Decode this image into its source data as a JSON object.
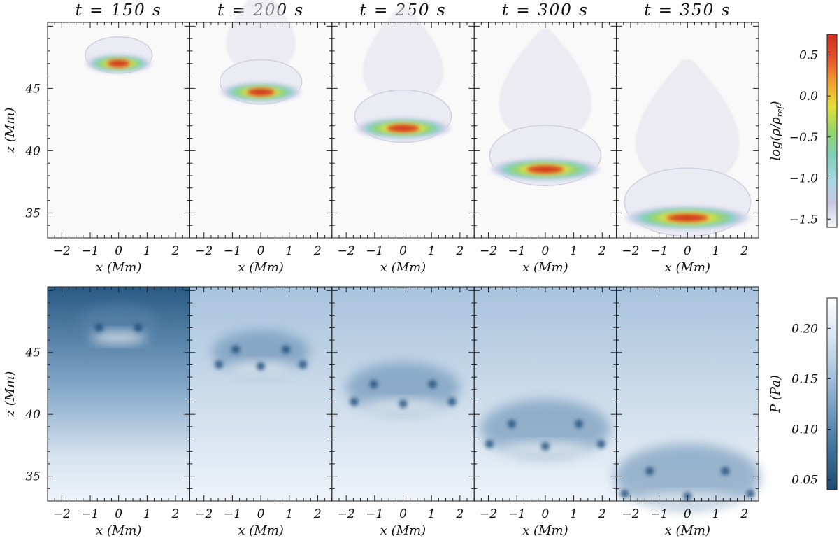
{
  "chart_data": [
    {
      "type": "heatmap",
      "variable": "density",
      "titles": [
        "t = 150 s",
        "t = 200 s",
        "t = 250 s",
        "t = 300 s",
        "t = 350 s"
      ],
      "times_s": [
        150,
        200,
        250,
        300,
        350
      ],
      "xlabel": "x (Mm)",
      "ylabel": "z (Mm)",
      "xlim": [
        -2.5,
        2.5
      ],
      "ylim": [
        33,
        50.3
      ],
      "x_ticks": [
        -2,
        -1,
        0,
        1,
        2
      ],
      "y_ticks": [
        35,
        40,
        45
      ],
      "colorbar": {
        "label": "log(ρ/ρ",
        "label_sub": "ref",
        "label_end": ")",
        "range": [
          -1.6,
          0.75
        ],
        "ticks": [
          0.5,
          0.0,
          -0.5,
          -1.0,
          -1.5
        ],
        "tick_labels": [
          "0.5",
          "0.0",
          "−0.5",
          "−1.0",
          "−1.5"
        ],
        "colors": [
          "#f6f6f8",
          "#c8c8e4",
          "#a8d8e2",
          "#7fcfb8",
          "#95d46a",
          "#e4e03c",
          "#f2a030",
          "#e4512a",
          "#cf3020"
        ]
      },
      "blob_center_z": [
        47.0,
        44.7,
        41.8,
        38.5,
        34.6
      ]
    },
    {
      "type": "heatmap",
      "variable": "pressure",
      "xlabel": "x (Mm)",
      "ylabel": "z (Mm)",
      "xlim": [
        -2.5,
        2.5
      ],
      "ylim": [
        33,
        50.3
      ],
      "x_ticks": [
        -2,
        -1,
        0,
        1,
        2
      ],
      "y_ticks": [
        35,
        40,
        45
      ],
      "colorbar": {
        "label": "P (Pa)",
        "range": [
          0.04,
          0.23
        ],
        "ticks": [
          0.2,
          0.15,
          0.1,
          0.05
        ],
        "tick_labels": [
          "0.20",
          "0.15",
          "0.10",
          "0.05"
        ],
        "colors": [
          "#1e4a72",
          "#3d6f9a",
          "#6f98bd",
          "#a7c3dc",
          "#d8e5f1",
          "#ffffff"
        ]
      }
    }
  ]
}
